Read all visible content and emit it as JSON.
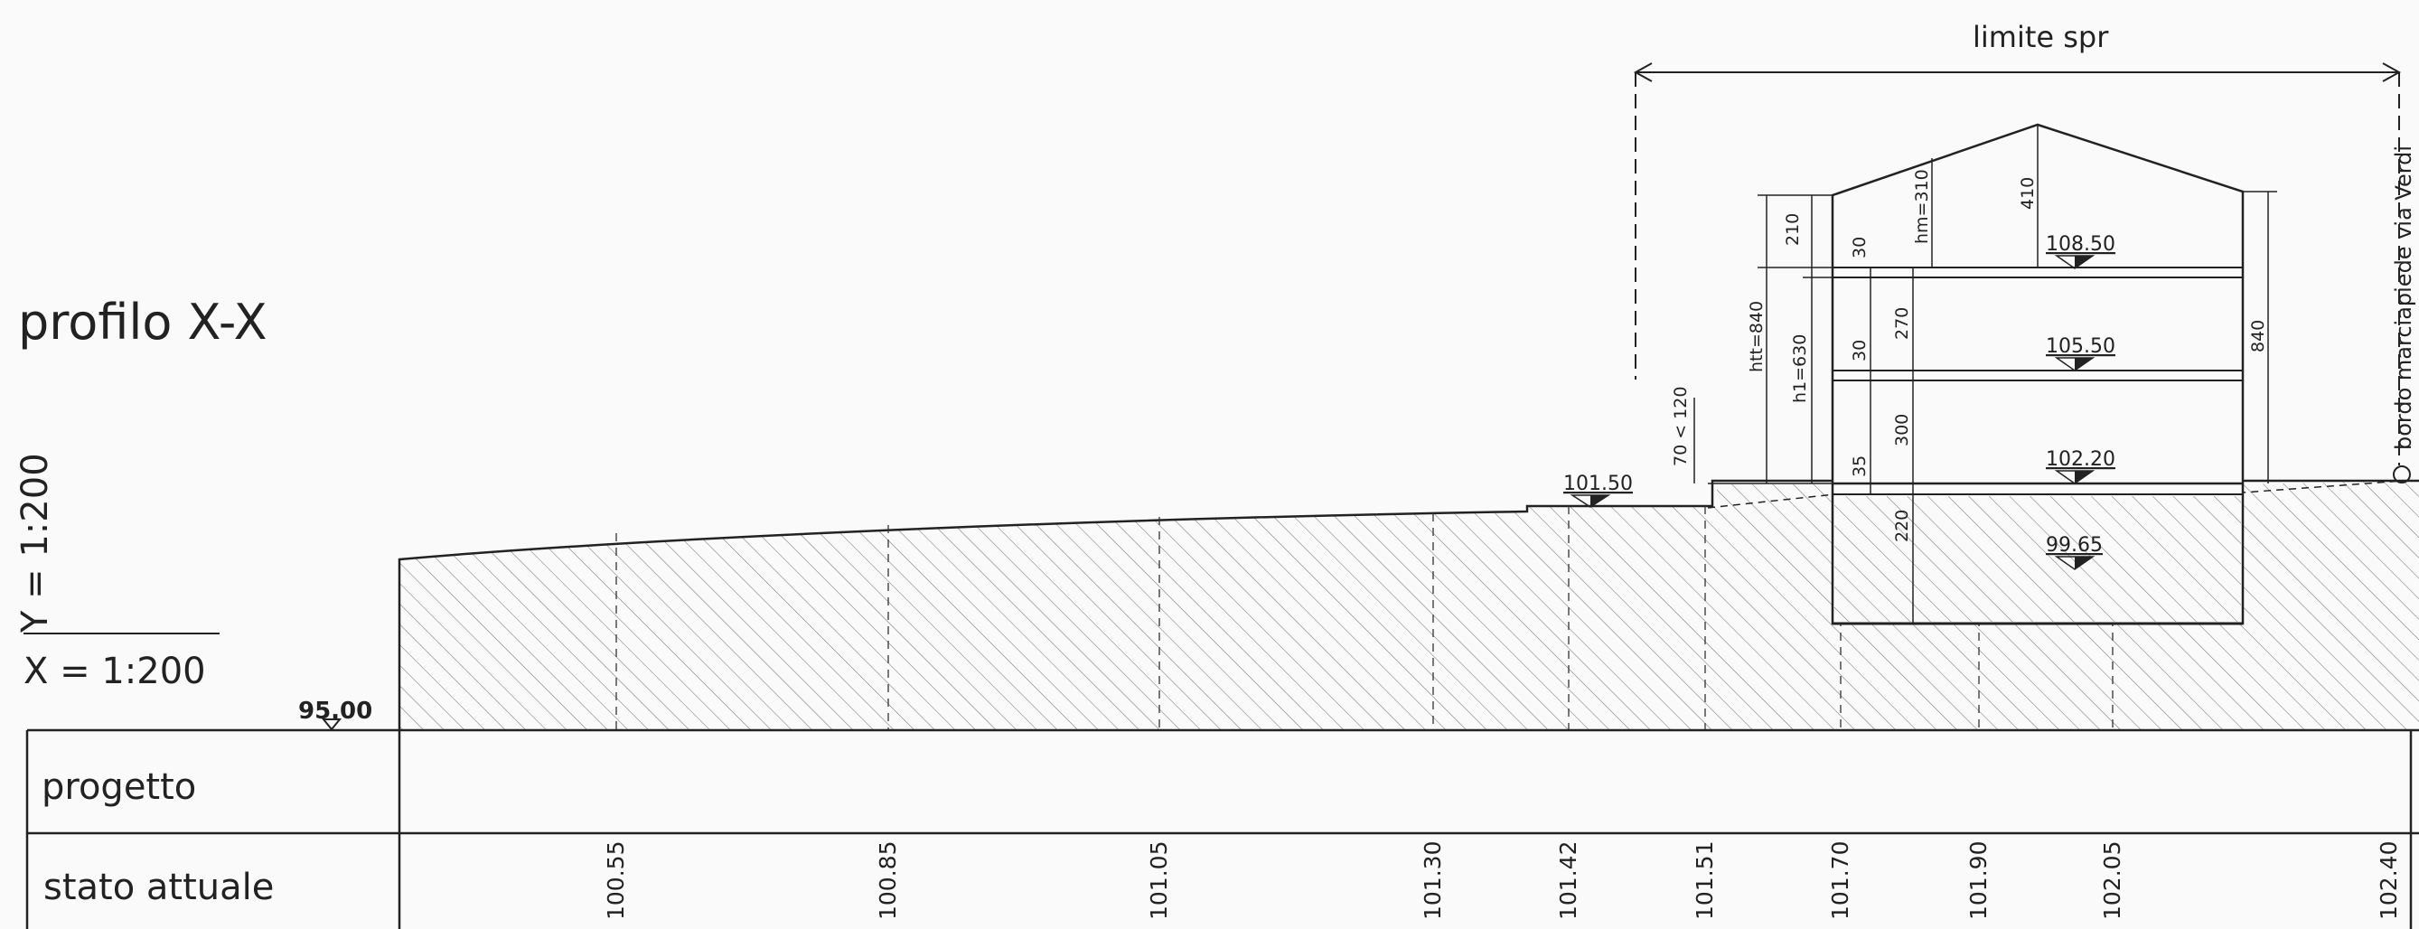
{
  "title": "profilo X-X",
  "scale": {
    "y": "Y = 1:200",
    "x": "X = 1:200"
  },
  "datum": "95.00",
  "rows": {
    "progetto": "progetto",
    "stato_attuale": "stato attuale"
  },
  "stato_values": [
    "100.55",
    "100.85",
    "101.05",
    "101.30",
    "101.42",
    "101.51",
    "101.70",
    "101.90",
    "102.05",
    "102.40"
  ],
  "limit_label": "limite spr",
  "street_label": "bordo marciapiede via Verdi",
  "levels": [
    "108.50",
    "105.50",
    "102.20",
    "99.65",
    "101.50"
  ],
  "dims": {
    "d210": "210",
    "d30a": "30",
    "hm": "hm=310",
    "d410": "410",
    "d270": "270",
    "d30b": "30",
    "d300": "300",
    "d35": "35",
    "d220": "220",
    "htt": "htt=840",
    "h1": "h1=630",
    "d840": "840",
    "d70": "70 < 120"
  }
}
